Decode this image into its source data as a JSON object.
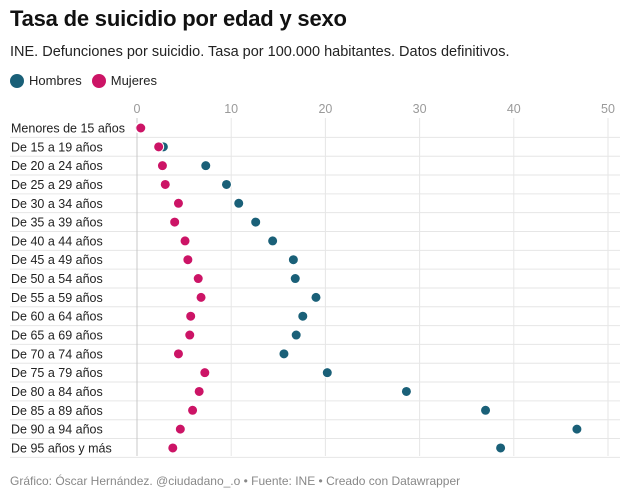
{
  "header": {
    "title": "Tasa de suicidio por edad y sexo",
    "subtitle": "INE. Defunciones por suicidio. Tasa por 100.000 habitantes. Datos definitivos."
  },
  "legend": {
    "hombres": "Hombres",
    "mujeres": "Mujeres"
  },
  "footer": {
    "text": "Gráfico: Óscar Hernández. @ciudadano_.o • Fuente: INE • Creado con Datawrapper"
  },
  "colors": {
    "hombres": "#1a6078",
    "mujeres": "#cc1466",
    "grid": "#e6e6e6",
    "axis": "#c8c8c8"
  },
  "chart_data": {
    "type": "scatter",
    "subtype": "dot-plot",
    "title": "Tasa de suicidio por edad y sexo",
    "subtitle": "INE. Defunciones por suicidio. Tasa por 100.000 habitantes. Datos definitivos.",
    "xlabel": "",
    "ylabel": "",
    "xlim": [
      0,
      50
    ],
    "xticks": [
      0,
      10,
      20,
      30,
      40,
      50
    ],
    "grid": true,
    "legend_position": "top-left",
    "categories": [
      "Menores de 15 años",
      "De 15 a 19 años",
      "De 20 a 24 años",
      "De 25 a 29 años",
      "De 30 a 34 años",
      "De 35 a 39 años",
      "De 40 a 44 años",
      "De 45 a 49 años",
      "De 50 a 54 años",
      "De 55 a 59 años",
      "De 60 a 64 años",
      "De 65 a 69 años",
      "De 70 a 74 años",
      "De 75 a 79 años",
      "De 80 a 84 años",
      "De 85 a 89 años",
      "De 90 a 94 años",
      "De 95 años y más"
    ],
    "series": [
      {
        "name": "Hombres",
        "color": "#1a6078",
        "values": [
          0.3,
          2.8,
          7.3,
          9.5,
          10.8,
          12.6,
          14.4,
          16.6,
          16.8,
          19.0,
          17.6,
          16.9,
          15.6,
          20.2,
          28.6,
          37.0,
          46.7,
          38.6
        ]
      },
      {
        "name": "Mujeres",
        "color": "#cc1466",
        "values": [
          0.4,
          2.3,
          2.7,
          3.0,
          4.4,
          4.0,
          5.1,
          5.4,
          6.5,
          6.8,
          5.7,
          5.6,
          4.4,
          7.2,
          6.6,
          5.9,
          4.6,
          3.8
        ]
      }
    ]
  }
}
